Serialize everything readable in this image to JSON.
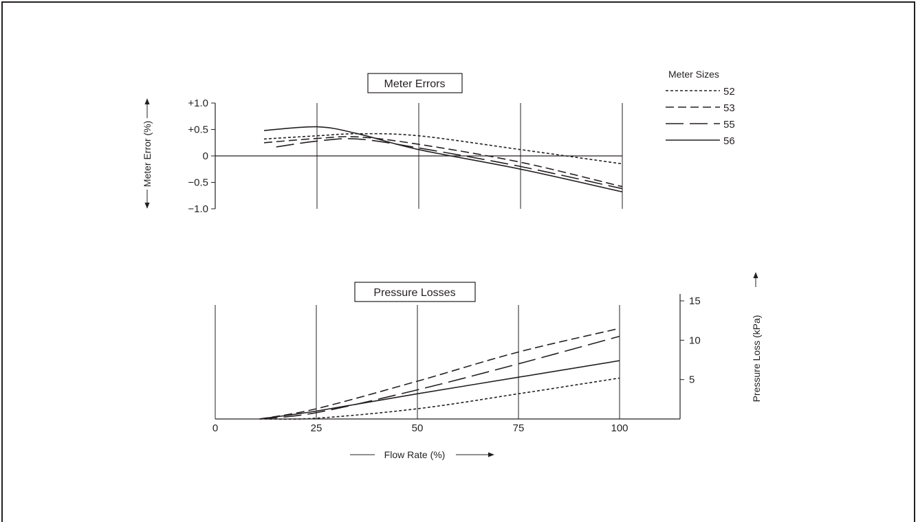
{
  "chart_data": [
    {
      "type": "line",
      "title": "Meter Errors",
      "xlabel": "",
      "ylabel": "Meter Error (%)",
      "xlim": [
        0,
        100
      ],
      "ylim": [
        -1.0,
        1.0
      ],
      "yticks": [
        1.0,
        0.5,
        0,
        -0.5,
        -1.0
      ],
      "ytick_labels": [
        "+1.0",
        "+0.5",
        "0",
        "−0.5",
        "−1.0"
      ],
      "legend_title": "Meter Sizes",
      "legend_position": "top-right",
      "series": [
        {
          "name": "52",
          "dash": "dotted",
          "x": [
            12,
            25,
            35,
            50,
            75,
            100
          ],
          "y": [
            0.32,
            0.38,
            0.42,
            0.38,
            0.12,
            -0.15
          ]
        },
        {
          "name": "53",
          "dash": "dashed",
          "x": [
            12,
            25,
            35,
            50,
            75,
            100
          ],
          "y": [
            0.25,
            0.33,
            0.36,
            0.22,
            -0.12,
            -0.58
          ]
        },
        {
          "name": "55",
          "dash": "long-dashed",
          "x": [
            15,
            25,
            35,
            50,
            75,
            100
          ],
          "y": [
            0.17,
            0.28,
            0.32,
            0.15,
            -0.2,
            -0.62
          ]
        },
        {
          "name": "56",
          "dash": "solid",
          "x": [
            12,
            25,
            35,
            50,
            75,
            100
          ],
          "y": [
            0.48,
            0.55,
            0.42,
            0.12,
            -0.25,
            -0.68
          ]
        }
      ]
    },
    {
      "type": "line",
      "title": "Pressure Losses",
      "xlabel": "Flow Rate (%)",
      "ylabel": "Pressure Loss (kPa)",
      "xlim": [
        0,
        100
      ],
      "ylim": [
        0,
        15
      ],
      "xticks": [
        0,
        25,
        50,
        75,
        100
      ],
      "xtick_labels": [
        "0",
        "25",
        "50",
        "75",
        "100"
      ],
      "yticks": [
        5,
        10,
        15
      ],
      "ytick_labels": [
        "5",
        "10",
        "15"
      ],
      "series": [
        {
          "name": "52",
          "dash": "dotted",
          "x": [
            11,
            25,
            50,
            75,
            100
          ],
          "y": [
            0,
            0.1,
            1.3,
            3.2,
            5.2
          ]
        },
        {
          "name": "53",
          "dash": "dashed",
          "x": [
            11,
            25,
            50,
            75,
            100
          ],
          "y": [
            0,
            1.3,
            4.8,
            8.5,
            11.5
          ]
        },
        {
          "name": "55",
          "dash": "long-dashed",
          "x": [
            11,
            25,
            50,
            75,
            100
          ],
          "y": [
            0,
            0.8,
            3.7,
            7.0,
            10.5
          ]
        },
        {
          "name": "56",
          "dash": "solid",
          "x": [
            11,
            25,
            50,
            75,
            100
          ],
          "y": [
            0,
            1.0,
            3.2,
            5.3,
            7.4
          ]
        }
      ]
    }
  ]
}
